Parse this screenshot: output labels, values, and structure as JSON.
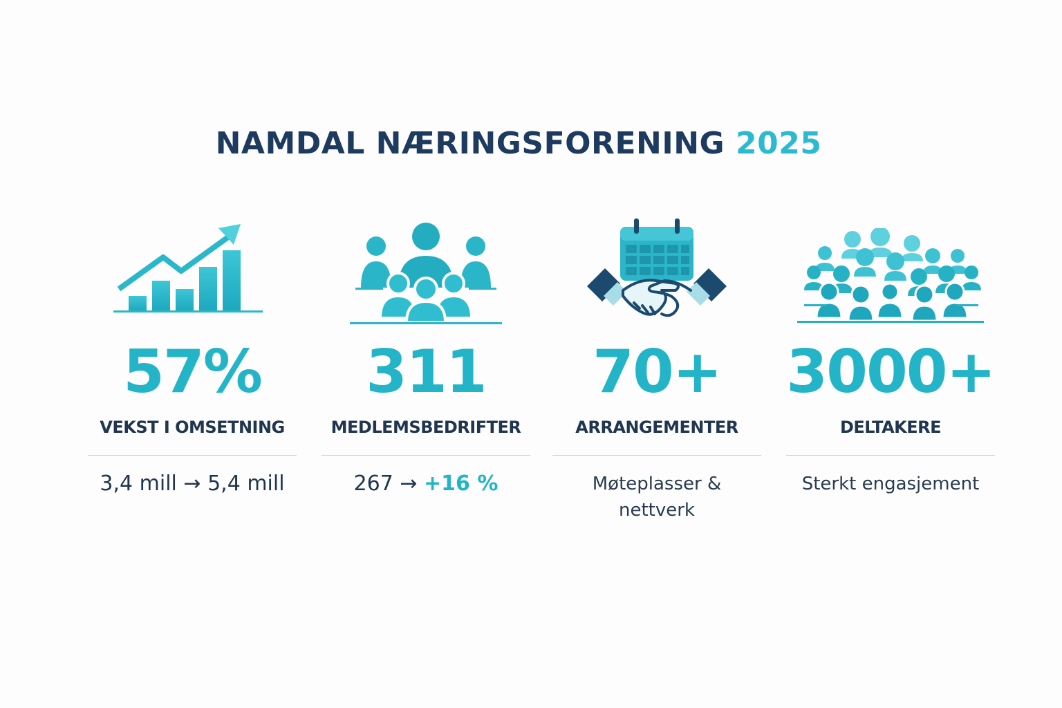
{
  "title": {
    "main": "NAMDAL NÆRINGSFORENING",
    "year": "2025"
  },
  "stats": [
    {
      "icon": "growth-chart-icon",
      "value": "57%",
      "label": "VEKST I OMSETNING",
      "detail": "3,4 mill → 5,4 mill"
    },
    {
      "icon": "member-group-icon",
      "value": "311",
      "label": "MEDLEMSBEDRIFTER",
      "detail_prefix": "267 →",
      "detail_accent": "+16 %"
    },
    {
      "icon": "handshake-calendar-icon",
      "value": "70+",
      "label": "ARRANGEMENTER",
      "detail_line1": "Møteplasser &",
      "detail_line2": "nettverk"
    },
    {
      "icon": "crowd-icon",
      "value": "3000+",
      "label": "DELTAKERE",
      "detail": "Sterkt engasjement"
    }
  ],
  "colors": {
    "accent": "#23b4c8",
    "navy": "#1d3a5f",
    "background": "#fdfdfd"
  }
}
